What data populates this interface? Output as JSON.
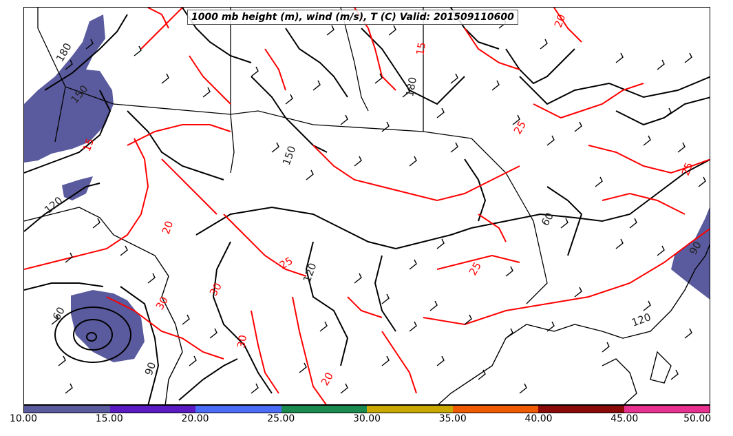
{
  "title": "1000 mb height (m), wind (m/s), T (C) Valid: 201509110600",
  "colorbar": {
    "ticks": [
      "10.00",
      "15.00",
      "20.00",
      "25.00",
      "30.00",
      "35.00",
      "40.00",
      "45.00",
      "50.00"
    ],
    "colors": [
      "#5a5a9e",
      "#5a1cc2",
      "#4a6cf7",
      "#1a8a4e",
      "#c9a800",
      "#f05a00",
      "#8a0a0a",
      "#e8308e"
    ]
  },
  "contour_labels": {
    "height": [
      "180",
      "150",
      "120",
      "60",
      "90",
      "120",
      "60",
      "90",
      "120",
      "150",
      "180"
    ],
    "temperature": [
      "15",
      "20",
      "25",
      "30",
      "25",
      "20",
      "15",
      "25",
      "20",
      "30",
      "25",
      "30"
    ]
  },
  "legend_colors": {
    "height_contour": "#000000",
    "temperature_contour": "#ff0000",
    "wind_shading_low": "#5a5a9e"
  }
}
